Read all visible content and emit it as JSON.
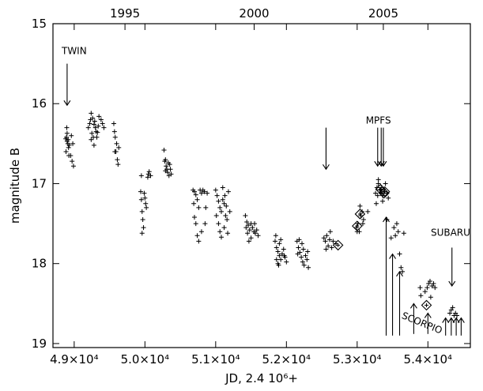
{
  "chart_data": {
    "type": "scatter",
    "xlabel": "JD, 2.4 10⁶+",
    "ylabel": "magnitude  B",
    "xlim": [
      48700,
      54600
    ],
    "ylim": [
      19.05,
      15.0
    ],
    "y_inverted": true,
    "x_ticks": [
      {
        "value": 49000,
        "label": "4.9×10⁴"
      },
      {
        "value": 50000,
        "label": "5.0×10⁴"
      },
      {
        "value": 51000,
        "label": "5.1×10⁴"
      },
      {
        "value": 52000,
        "label": "5.2×10⁴"
      },
      {
        "value": 53000,
        "label": "5.3×10⁴"
      },
      {
        "value": 54000,
        "label": "5.4×10⁴"
      }
    ],
    "x_top_ticks": [
      {
        "value": 49718,
        "label": "1995"
      },
      {
        "value": 51544,
        "label": "2000"
      },
      {
        "value": 53370,
        "label": "2005"
      }
    ],
    "y_ticks": [
      {
        "value": 15,
        "label": "15"
      },
      {
        "value": 16,
        "label": "16"
      },
      {
        "value": 17,
        "label": "17"
      },
      {
        "value": 18,
        "label": "18"
      },
      {
        "value": 19,
        "label": "19"
      }
    ],
    "series": [
      {
        "marker": "plus",
        "points": [
          [
            48880,
            16.44
          ],
          [
            48890,
            16.42
          ],
          [
            48900,
            16.47
          ],
          [
            48910,
            16.5
          ],
          [
            48920,
            16.55
          ],
          [
            48885,
            16.6
          ],
          [
            48900,
            16.37
          ],
          [
            48915,
            16.45
          ],
          [
            48930,
            16.52
          ],
          [
            48950,
            16.65
          ],
          [
            48970,
            16.72
          ],
          [
            48990,
            16.78
          ],
          [
            48960,
            16.4
          ],
          [
            48980,
            16.5
          ],
          [
            48895,
            16.3
          ],
          [
            48925,
            16.65
          ],
          [
            49240,
            16.12
          ],
          [
            49260,
            16.18
          ],
          [
            49280,
            16.26
          ],
          [
            49300,
            16.3
          ],
          [
            49250,
            16.37
          ],
          [
            49270,
            16.42
          ],
          [
            49290,
            16.22
          ],
          [
            49310,
            16.35
          ],
          [
            49200,
            16.3
          ],
          [
            49220,
            16.25
          ],
          [
            49330,
            16.36
          ],
          [
            49340,
            16.28
          ],
          [
            49350,
            16.16
          ],
          [
            49380,
            16.2
          ],
          [
            49400,
            16.25
          ],
          [
            49240,
            16.45
          ],
          [
            49280,
            16.52
          ],
          [
            49420,
            16.3
          ],
          [
            49230,
            16.2
          ],
          [
            49320,
            16.42
          ],
          [
            49560,
            16.25
          ],
          [
            49570,
            16.35
          ],
          [
            49580,
            16.42
          ],
          [
            49600,
            16.5
          ],
          [
            49590,
            16.6
          ],
          [
            49610,
            16.7
          ],
          [
            49620,
            16.76
          ],
          [
            49630,
            16.55
          ],
          [
            49575,
            16.6
          ],
          [
            49940,
            17.1
          ],
          [
            49950,
            17.2
          ],
          [
            49960,
            17.35
          ],
          [
            49970,
            17.45
          ],
          [
            49980,
            17.55
          ],
          [
            49990,
            17.12
          ],
          [
            50000,
            17.18
          ],
          [
            50010,
            17.25
          ],
          [
            50020,
            17.3
          ],
          [
            49950,
            16.9
          ],
          [
            50040,
            16.92
          ],
          [
            50050,
            16.88
          ],
          [
            50060,
            16.85
          ],
          [
            50080,
            16.9
          ],
          [
            49960,
            17.62
          ],
          [
            50270,
            16.58
          ],
          [
            50280,
            16.72
          ],
          [
            50290,
            16.7
          ],
          [
            50300,
            16.78
          ],
          [
            50310,
            16.82
          ],
          [
            50320,
            16.86
          ],
          [
            50340,
            16.9
          ],
          [
            50350,
            16.76
          ],
          [
            50370,
            16.88
          ],
          [
            50290,
            16.84
          ],
          [
            50330,
            16.74
          ],
          [
            50360,
            16.82
          ],
          [
            50680,
            17.08
          ],
          [
            50700,
            17.1
          ],
          [
            50720,
            17.14
          ],
          [
            50740,
            17.2
          ],
          [
            50760,
            17.3
          ],
          [
            50780,
            17.08
          ],
          [
            50700,
            17.42
          ],
          [
            50720,
            17.5
          ],
          [
            50740,
            17.65
          ],
          [
            50760,
            17.72
          ],
          [
            50800,
            17.12
          ],
          [
            50820,
            17.08
          ],
          [
            50840,
            17.1
          ],
          [
            50860,
            17.3
          ],
          [
            50880,
            17.12
          ],
          [
            50800,
            17.6
          ],
          [
            50690,
            17.25
          ],
          [
            50850,
            17.5
          ],
          [
            51000,
            17.08
          ],
          [
            51020,
            17.15
          ],
          [
            51040,
            17.22
          ],
          [
            51060,
            17.3
          ],
          [
            51080,
            17.35
          ],
          [
            51100,
            17.2
          ],
          [
            51120,
            17.25
          ],
          [
            51140,
            17.4
          ],
          [
            51160,
            17.45
          ],
          [
            51040,
            17.5
          ],
          [
            51060,
            17.6
          ],
          [
            51080,
            17.67
          ],
          [
            51100,
            17.05
          ],
          [
            51130,
            17.15
          ],
          [
            51150,
            17.28
          ],
          [
            51180,
            17.1
          ],
          [
            51200,
            17.35
          ],
          [
            51120,
            17.55
          ],
          [
            51010,
            17.4
          ],
          [
            51170,
            17.62
          ],
          [
            51420,
            17.4
          ],
          [
            51440,
            17.48
          ],
          [
            51460,
            17.52
          ],
          [
            51480,
            17.58
          ],
          [
            51500,
            17.5
          ],
          [
            51520,
            17.55
          ],
          [
            51540,
            17.6
          ],
          [
            51560,
            17.62
          ],
          [
            51580,
            17.58
          ],
          [
            51600,
            17.65
          ],
          [
            51450,
            17.62
          ],
          [
            51470,
            17.72
          ],
          [
            51500,
            17.68
          ],
          [
            51430,
            17.55
          ],
          [
            51550,
            17.5
          ],
          [
            51840,
            17.72
          ],
          [
            51860,
            17.8
          ],
          [
            51880,
            17.85
          ],
          [
            51900,
            17.9
          ],
          [
            51920,
            17.95
          ],
          [
            51940,
            17.88
          ],
          [
            51860,
            17.95
          ],
          [
            51880,
            18.0
          ],
          [
            51900,
            17.75
          ],
          [
            51960,
            17.82
          ],
          [
            51980,
            17.92
          ],
          [
            52000,
            17.98
          ],
          [
            51850,
            17.65
          ],
          [
            51920,
            17.7
          ],
          [
            51890,
            18.02
          ],
          [
            51970,
            17.9
          ],
          [
            52150,
            17.72
          ],
          [
            52170,
            17.8
          ],
          [
            52190,
            17.86
          ],
          [
            52210,
            17.92
          ],
          [
            52230,
            17.98
          ],
          [
            52250,
            18.02
          ],
          [
            52270,
            17.9
          ],
          [
            52290,
            17.95
          ],
          [
            52310,
            18.05
          ],
          [
            52180,
            17.7
          ],
          [
            52220,
            17.75
          ],
          [
            52160,
            17.88
          ],
          [
            52240,
            17.82
          ],
          [
            52300,
            17.85
          ],
          [
            52530,
            17.68
          ],
          [
            52550,
            17.72
          ],
          [
            52570,
            17.65
          ],
          [
            52590,
            17.78
          ],
          [
            52610,
            17.7
          ],
          [
            52640,
            17.8
          ],
          [
            52660,
            17.72
          ],
          [
            52700,
            17.75
          ],
          [
            52560,
            17.82
          ],
          [
            52620,
            17.6
          ],
          [
            52990,
            17.55
          ],
          [
            53010,
            17.5
          ],
          [
            53030,
            17.6
          ],
          [
            53050,
            17.4
          ],
          [
            53070,
            17.35
          ],
          [
            53090,
            17.45
          ],
          [
            53000,
            17.6
          ],
          [
            53040,
            17.28
          ],
          [
            53080,
            17.5
          ],
          [
            53150,
            17.35
          ],
          [
            53260,
            17.12
          ],
          [
            53280,
            17.05
          ],
          [
            53300,
            17.0
          ],
          [
            53320,
            17.08
          ],
          [
            53340,
            17.12
          ],
          [
            53360,
            17.15
          ],
          [
            53380,
            17.1
          ],
          [
            53300,
            16.95
          ],
          [
            53340,
            17.05
          ],
          [
            53420,
            17.12
          ],
          [
            53440,
            17.18
          ],
          [
            53270,
            17.25
          ],
          [
            53360,
            17.22
          ],
          [
            53400,
            17.0
          ],
          [
            53290,
            17.15
          ],
          [
            53420,
            17.45
          ],
          [
            53480,
            17.68
          ],
          [
            53520,
            17.55
          ],
          [
            53560,
            17.5
          ],
          [
            53580,
            17.6
          ],
          [
            53600,
            17.88
          ],
          [
            53640,
            18.1
          ],
          [
            53660,
            17.62
          ],
          [
            53540,
            17.65
          ],
          [
            53620,
            18.05
          ],
          [
            53890,
            18.3
          ],
          [
            53900,
            18.4
          ],
          [
            53960,
            18.35
          ],
          [
            54010,
            18.25
          ],
          [
            54030,
            18.22
          ],
          [
            54060,
            18.28
          ],
          [
            54080,
            18.25
          ],
          [
            53990,
            18.3
          ],
          [
            54040,
            18.42
          ],
          [
            54100,
            18.3
          ],
          [
            54310,
            18.62
          ],
          [
            54330,
            18.58
          ],
          [
            54350,
            18.55
          ],
          [
            54370,
            18.65
          ],
          [
            54390,
            18.62
          ],
          [
            54410,
            18.65
          ]
        ]
      },
      {
        "marker": "diamond",
        "points": [
          [
            52730,
            17.77
          ],
          [
            53000,
            17.53
          ],
          [
            53040,
            17.38
          ],
          [
            53330,
            17.07
          ],
          [
            53380,
            17.12
          ],
          [
            53390,
            17.1
          ],
          [
            53980,
            18.52
          ]
        ]
      }
    ],
    "annotations": [
      {
        "text": "TWIN",
        "x": 49000,
        "y": 15.38
      },
      {
        "text": "MPFS",
        "x": 53300,
        "y": 16.25
      },
      {
        "text": "SUBARU",
        "x": 54320,
        "y": 17.65
      },
      {
        "text": "SCORPIO",
        "x": 53900,
        "y": 18.78
      }
    ],
    "arrows": [
      {
        "x": 48900,
        "y_from": 15.5,
        "y_to": 16.02
      },
      {
        "x": 52560,
        "y_from": 16.3,
        "y_to": 16.82
      },
      {
        "x": 53290,
        "y_from": 16.3,
        "y_to": 16.78
      },
      {
        "x": 53340,
        "y_from": 16.3,
        "y_to": 16.78
      },
      {
        "x": 53370,
        "y_from": 16.3,
        "y_to": 16.78
      },
      {
        "x": 54340,
        "y_from": 17.8,
        "y_to": 18.28
      },
      {
        "x": 53410,
        "y_from": 18.9,
        "y_to": 17.42
      },
      {
        "x": 53500,
        "y_from": 18.9,
        "y_to": 17.88
      },
      {
        "x": 53600,
        "y_from": 18.9,
        "y_to": 18.1
      },
      {
        "x": 53800,
        "y_from": 18.88,
        "y_to": 18.5
      },
      {
        "x": 54000,
        "y_from": 18.88,
        "y_to": 18.62
      },
      {
        "x": 54250,
        "y_from": 18.9,
        "y_to": 18.68
      },
      {
        "x": 54330,
        "y_from": 18.9,
        "y_to": 18.68
      },
      {
        "x": 54400,
        "y_from": 18.9,
        "y_to": 18.68
      },
      {
        "x": 54470,
        "y_from": 18.9,
        "y_to": 18.68
      }
    ]
  }
}
